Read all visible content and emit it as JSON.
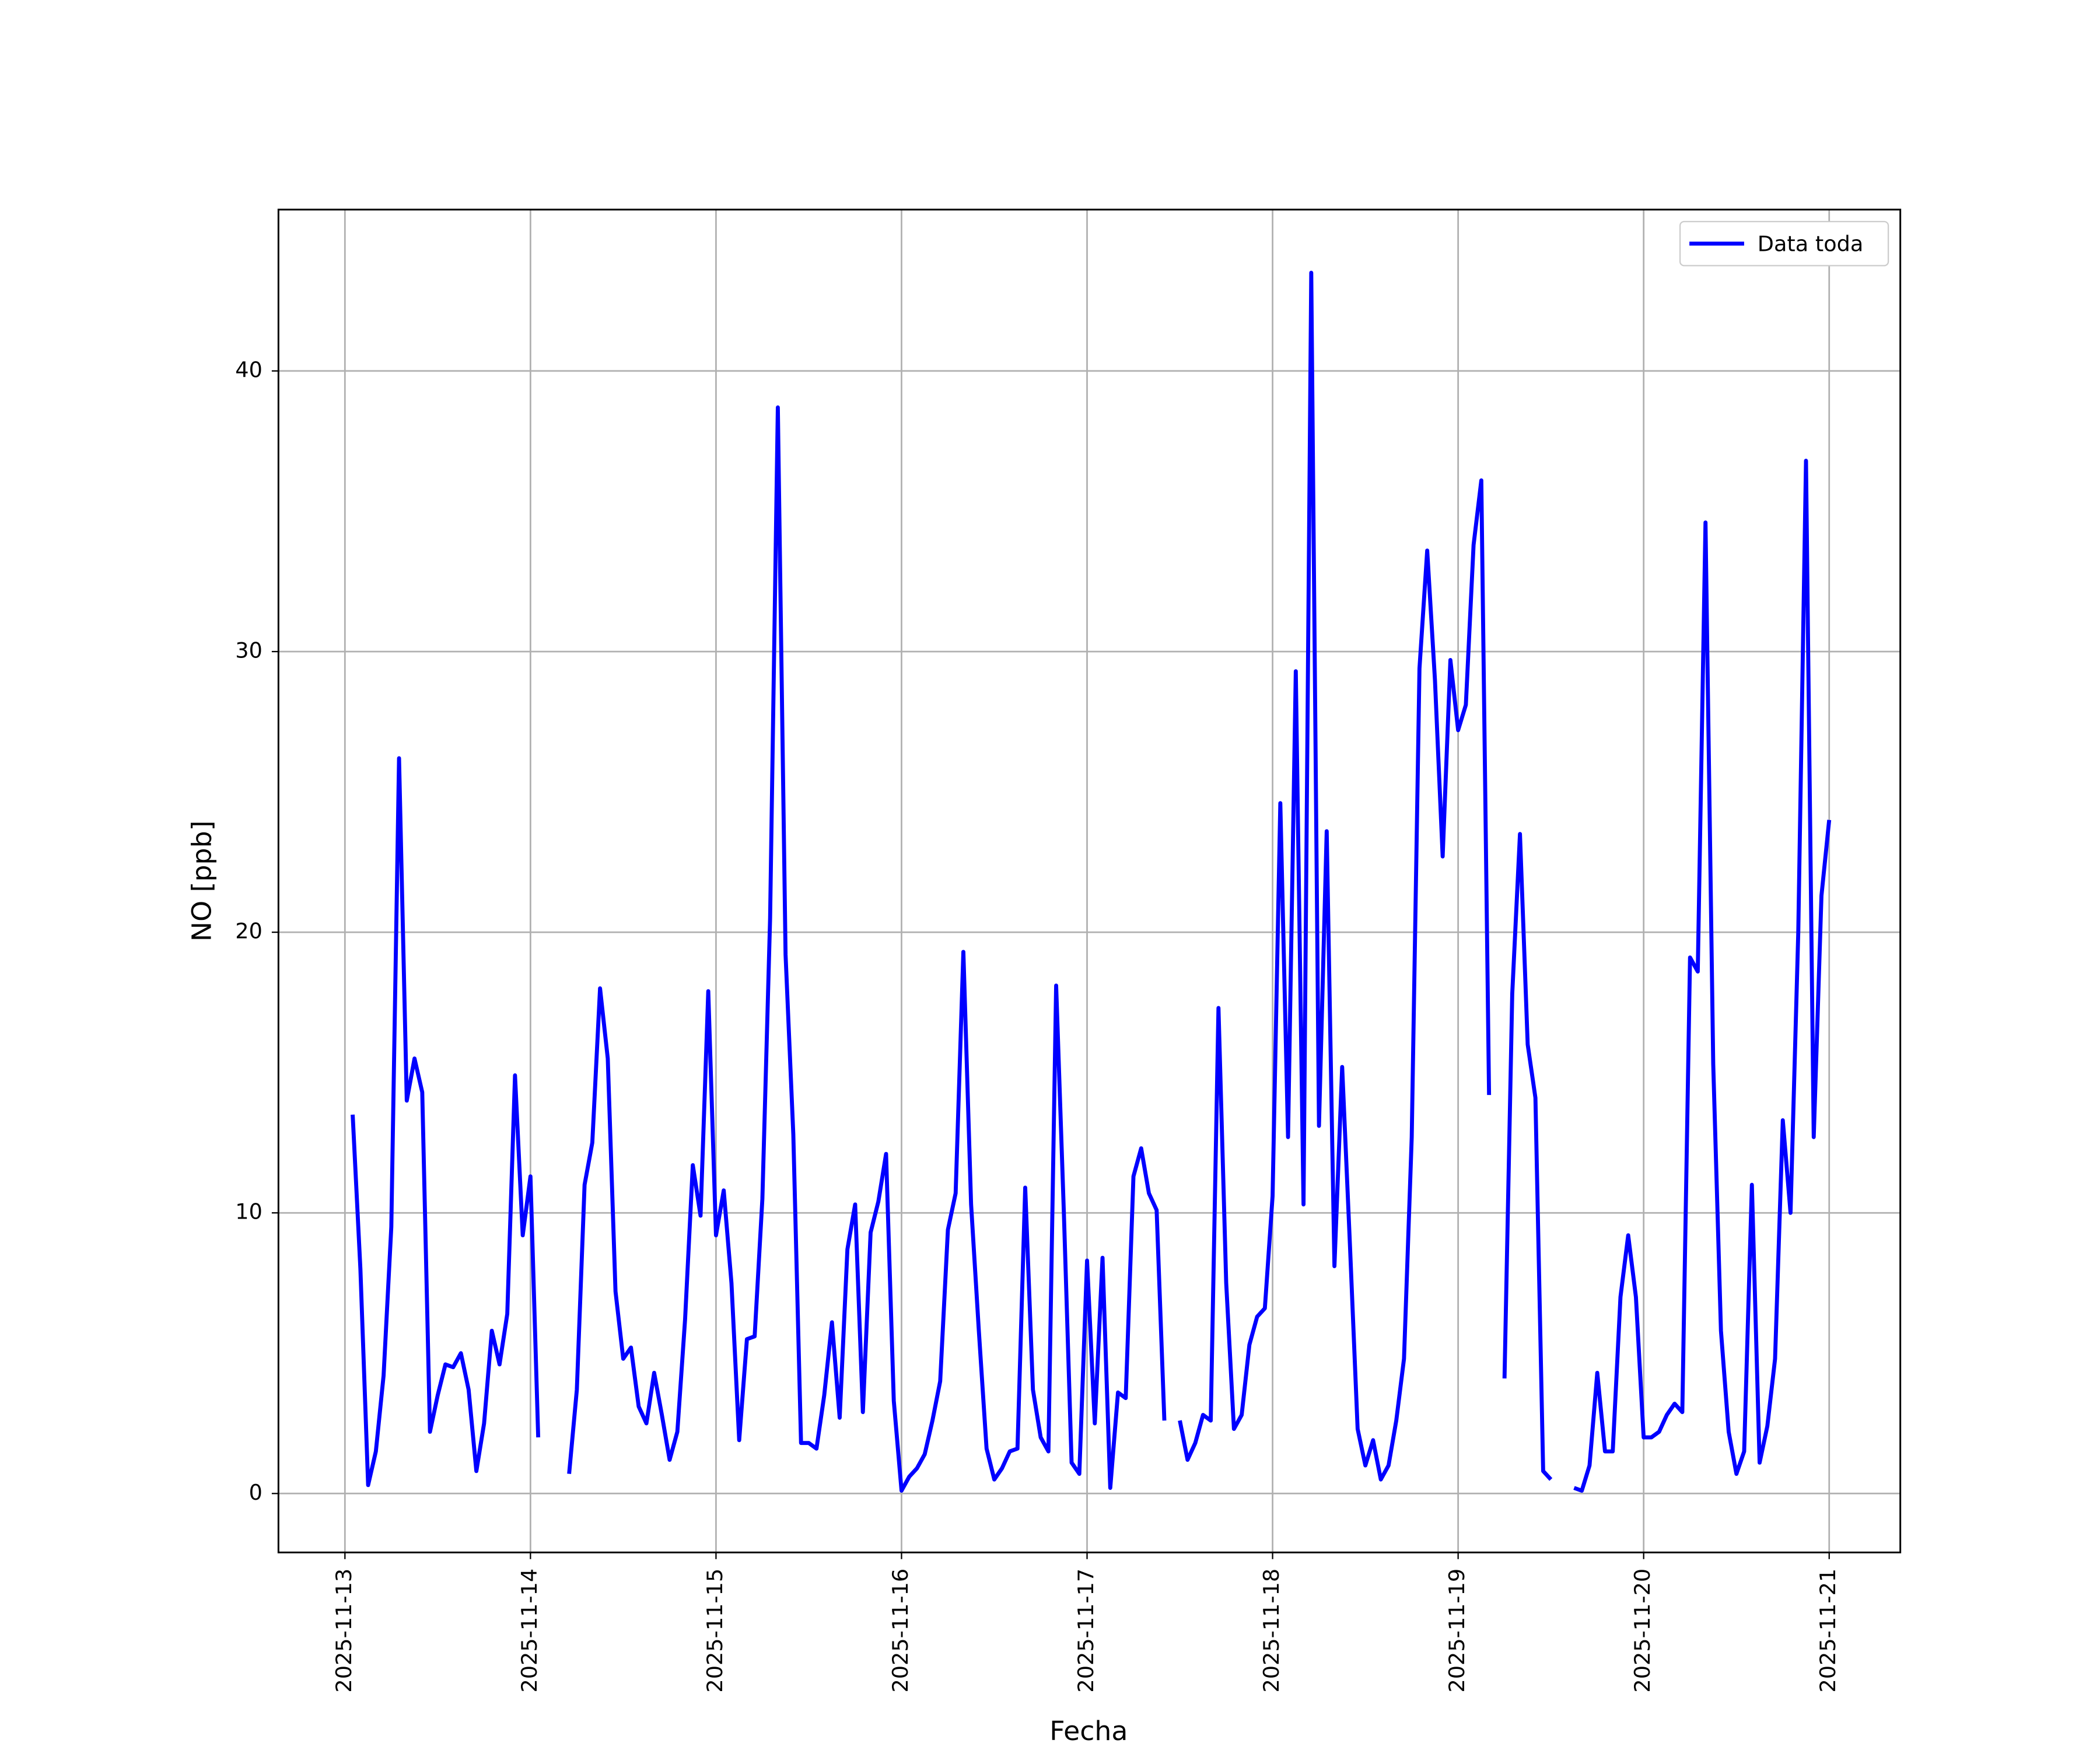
{
  "chart_data": {
    "type": "line",
    "xlabel": "Fecha",
    "ylabel": "NO [ppb]",
    "x": [
      1,
      2,
      3,
      4,
      5,
      6,
      7,
      8,
      9,
      10,
      11,
      12,
      13,
      14,
      15,
      16,
      17,
      18,
      19,
      20,
      21,
      22,
      23,
      24,
      25,
      26,
      27,
      28,
      29,
      30,
      31,
      32,
      33,
      34,
      35,
      36,
      37,
      38,
      39,
      40,
      41,
      42,
      43,
      44,
      45,
      46,
      47,
      48,
      49,
      50,
      51,
      52,
      53,
      54,
      55,
      56,
      57,
      58,
      59,
      60,
      61,
      62,
      63,
      64,
      65,
      66,
      67,
      68,
      69,
      70,
      71,
      72,
      73,
      74,
      75,
      76,
      77,
      78,
      79,
      80,
      81,
      82,
      83,
      84,
      85,
      86,
      87,
      88,
      89,
      90,
      91,
      92,
      93,
      94,
      95,
      96,
      97,
      98,
      99,
      100,
      101,
      102,
      103,
      104,
      105,
      106,
      107,
      108,
      109,
      110,
      111,
      112,
      113,
      114,
      115,
      116,
      117,
      118,
      119,
      120,
      121,
      122,
      123,
      124,
      125,
      126,
      127,
      128,
      129,
      130,
      131,
      132,
      133,
      134,
      135,
      136,
      137,
      138,
      139,
      140,
      141,
      142,
      143,
      144,
      145,
      146,
      147,
      148,
      149,
      150,
      151,
      152,
      153,
      154,
      155,
      156,
      157,
      158,
      159,
      160,
      161,
      162,
      163,
      164,
      165,
      166,
      167,
      168,
      169,
      170,
      171,
      172,
      173,
      174,
      175,
      176,
      177,
      178,
      179,
      180,
      181,
      182,
      183,
      184,
      185,
      186,
      187,
      188,
      189,
      190,
      191,
      192
    ],
    "series": [
      {
        "name": "Data toda",
        "color": "#0000ff",
        "values": [
          13.5,
          8,
          0.3,
          1.5,
          4.2,
          9.5,
          26.2,
          14,
          15.5,
          14.3,
          2.2,
          3.5,
          4.6,
          4.5,
          5.0,
          3.7,
          0.8,
          2.5,
          5.8,
          4.6,
          6.4,
          14.9,
          9.2,
          11.3,
          2.0,
          null,
          null,
          null,
          0.7,
          3.7,
          11,
          12.5,
          18,
          15.5,
          7.2,
          4.8,
          5.2,
          3.1,
          2.5,
          4.3,
          2.8,
          1.2,
          2.2,
          6.2,
          11.7,
          9.9,
          17.9,
          9.2,
          10.8,
          7.5,
          1.9,
          5.5,
          5.6,
          10.5,
          20.5,
          38.7,
          19.2,
          12.8,
          1.8,
          1.8,
          1.6,
          3.5,
          6.1,
          2.7,
          8.7,
          10.3,
          2.9,
          9.3,
          10.4,
          12.1,
          3.3,
          0.1,
          0.6,
          0.9,
          1.4,
          2.6,
          4.0,
          9.4,
          10.7,
          19.3,
          10.3,
          5.8,
          1.6,
          0.5,
          0.9,
          1.5,
          1.6,
          10.9,
          3.7,
          2.0,
          1.5,
          18.1,
          10.0,
          1.1,
          0.7,
          8.3,
          2.5,
          8.4,
          0.2,
          3.6,
          3.4,
          11.3,
          12.3,
          10.7,
          10.1,
          2.6,
          null,
          2.6,
          1.2,
          1.8,
          2.8,
          2.6,
          17.3,
          7.5,
          2.3,
          2.8,
          5.3,
          6.3,
          6.6,
          10.6,
          24.6,
          12.7,
          29.3,
          10.3,
          43.5,
          13.1,
          23.6,
          8.1,
          15.2,
          8.9,
          2.3,
          1.0,
          1.9,
          0.5,
          1.0,
          2.6,
          4.8,
          12.7,
          29.4,
          33.6,
          29.0,
          22.7,
          29.7,
          27.2,
          28.1,
          33.8,
          36.1,
          14.2,
          null,
          4.1,
          17.8,
          23.5,
          16.0,
          14.1,
          0.8,
          0.5,
          null,
          null,
          0.2,
          0.1,
          1.0,
          4.3,
          1.5,
          1.5,
          7.0,
          9.2,
          7.0,
          2.0,
          2.0,
          2.2,
          2.8,
          3.2,
          2.9,
          19.1,
          18.6,
          34.6,
          15.3,
          5.8,
          2.2,
          0.7,
          1.5,
          11.0,
          1.1,
          2.4,
          4.8,
          13.3,
          10.0,
          20.0,
          36.8,
          12.7,
          21.3,
          24.0
        ]
      }
    ],
    "xlim": [
      -8.6,
      201.2
    ],
    "ylim": [
      -2.1,
      45.75
    ],
    "xticks": [
      {
        "value": 0,
        "label": "2025-11-13"
      },
      {
        "value": 24,
        "label": "2025-11-14"
      },
      {
        "value": 48,
        "label": "2025-11-15"
      },
      {
        "value": 72,
        "label": "2025-11-16"
      },
      {
        "value": 96,
        "label": "2025-11-17"
      },
      {
        "value": 120,
        "label": "2025-11-18"
      },
      {
        "value": 144,
        "label": "2025-11-19"
      },
      {
        "value": 168,
        "label": "2025-11-20"
      },
      {
        "value": 192,
        "label": "2025-11-21"
      }
    ],
    "yticks": [
      0,
      10,
      20,
      30,
      40
    ],
    "grid": true,
    "legend": "upper right"
  }
}
